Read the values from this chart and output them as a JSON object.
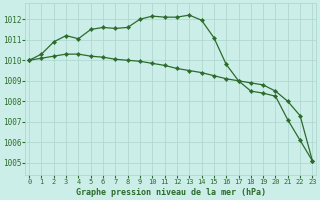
{
  "line1_x": [
    0,
    1,
    2,
    3,
    4,
    5,
    6,
    7,
    8,
    9,
    10,
    11,
    12,
    13,
    14,
    15,
    16,
    17,
    18,
    19,
    20,
    21,
    22,
    23
  ],
  "line1_y": [
    1010.0,
    1010.3,
    1010.9,
    1011.2,
    1011.05,
    1011.5,
    1011.6,
    1011.55,
    1011.6,
    1012.0,
    1012.15,
    1012.1,
    1012.1,
    1012.2,
    1011.95,
    1011.1,
    1009.8,
    1009.0,
    1008.5,
    1008.4,
    1008.25,
    1007.1,
    1006.1,
    1005.1
  ],
  "line2_x": [
    0,
    1,
    2,
    3,
    4,
    5,
    6,
    7,
    8,
    9,
    10,
    11,
    12,
    13,
    14,
    15,
    16,
    17,
    18,
    19,
    20,
    21,
    22,
    23
  ],
  "line2_y": [
    1010.0,
    1010.1,
    1010.2,
    1010.3,
    1010.3,
    1010.2,
    1010.15,
    1010.05,
    1010.0,
    1009.95,
    1009.85,
    1009.75,
    1009.6,
    1009.5,
    1009.4,
    1009.25,
    1009.1,
    1009.0,
    1008.9,
    1008.8,
    1008.5,
    1008.0,
    1007.3,
    1005.1
  ],
  "line_color": "#2d6b2d",
  "bg_color": "#cceee8",
  "grid_color": "#aad4cc",
  "xlabel": "Graphe pression niveau de la mer (hPa)",
  "xticks": [
    0,
    1,
    2,
    3,
    4,
    5,
    6,
    7,
    8,
    9,
    10,
    11,
    12,
    13,
    14,
    15,
    16,
    17,
    18,
    19,
    20,
    21,
    22,
    23
  ],
  "yticks": [
    1005,
    1006,
    1007,
    1008,
    1009,
    1010,
    1011,
    1012
  ],
  "ylim": [
    1004.4,
    1012.8
  ],
  "xlim": [
    -0.3,
    23.3
  ]
}
